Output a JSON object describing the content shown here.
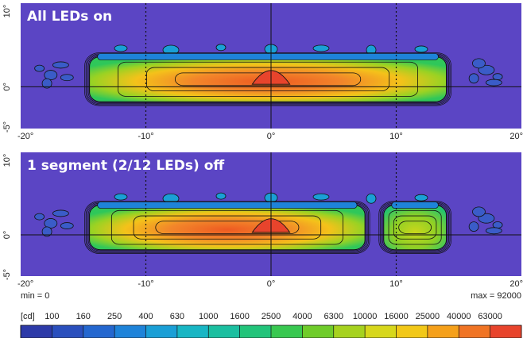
{
  "chart_data": [
    {
      "type": "heatmap",
      "title": "All LEDs on",
      "x_ticks": [
        "-20°",
        "-10°",
        "0°",
        "10°",
        "20°"
      ],
      "y_ticks": [
        "10°",
        "0°",
        "-5°"
      ],
      "x_range": [
        -20,
        20
      ],
      "y_range": [
        -5,
        10
      ],
      "reference_lines_x": [
        -10,
        10
      ],
      "blobs": [
        {
          "x0": -14.5,
          "x1": 14,
          "y0": -1.8,
          "y1": 3.6,
          "peak": 3.2
        }
      ]
    },
    {
      "type": "heatmap",
      "title": "1 segment (2/12 LEDs) off",
      "x_ticks": [
        "-20°",
        "-10°",
        "0°",
        "10°",
        "20°"
      ],
      "y_ticks": [
        "10°",
        "0°",
        "-5°"
      ],
      "x_range": [
        -20,
        20
      ],
      "y_range": [
        -5,
        10
      ],
      "reference_lines_x": [
        -10,
        10
      ],
      "blobs": [
        {
          "x0": -14.5,
          "x1": 7.5,
          "y0": -1.8,
          "y1": 3.6,
          "peak": 3.2
        },
        {
          "x0": 9,
          "x1": 14,
          "y0": -1.8,
          "y1": 3.6,
          "peak": 1.2
        }
      ]
    }
  ],
  "colorbar": {
    "min_label": "min = 0",
    "max_label": "max = 92000",
    "unit": "[cd]",
    "levels": [
      "100",
      "160",
      "250",
      "400",
      "630",
      "1000",
      "1600",
      "2500",
      "4000",
      "6300",
      "10000",
      "16000",
      "25000",
      "40000",
      "63000"
    ],
    "colors": [
      "#2d3aa8",
      "#2a4fbd",
      "#2467cf",
      "#1e83d9",
      "#1a9fd6",
      "#18b6c4",
      "#1bbfa0",
      "#22c47a",
      "#38c850",
      "#6fcc2a",
      "#a6d21f",
      "#d7d71c",
      "#f2c818",
      "#f5a01a",
      "#f07424",
      "#e8442c"
    ]
  }
}
